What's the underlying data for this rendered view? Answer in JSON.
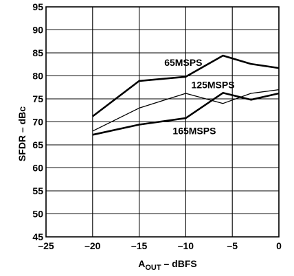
{
  "chart_data": {
    "type": "line",
    "title": "",
    "xlabel": "A",
    "xlabel_sub": "OUT",
    "xlabel_rest": " – dBFS",
    "ylabel": "SFDR – dBc",
    "xlim": [
      -25,
      0
    ],
    "ylim": [
      45,
      95
    ],
    "xticks": [
      -25,
      -20,
      -15,
      -10,
      -5,
      0
    ],
    "xtick_labels": [
      "–25",
      "–20",
      "–15",
      "–10",
      "–5",
      "0"
    ],
    "yticks": [
      45,
      50,
      55,
      60,
      65,
      70,
      75,
      80,
      85,
      90,
      95
    ],
    "grid": true,
    "series": [
      {
        "name": "65MSPS",
        "x": [
          -20,
          -15,
          -10,
          -6,
          -3,
          0
        ],
        "y": [
          71.2,
          78.9,
          79.8,
          84.4,
          82.6,
          81.7
        ],
        "color": "#000000"
      },
      {
        "name": "125MSPS",
        "x": [
          -20,
          -15,
          -10,
          -6,
          -3,
          0
        ],
        "y": [
          68.0,
          73.0,
          76.2,
          74.0,
          76.2,
          77.0
        ],
        "color": "#000000"
      },
      {
        "name": "165MSPS",
        "x": [
          -20,
          -15,
          -10,
          -6,
          -3,
          0
        ],
        "y": [
          67.2,
          69.4,
          70.8,
          76.3,
          74.8,
          76.2
        ],
        "color": "#000000"
      }
    ]
  }
}
